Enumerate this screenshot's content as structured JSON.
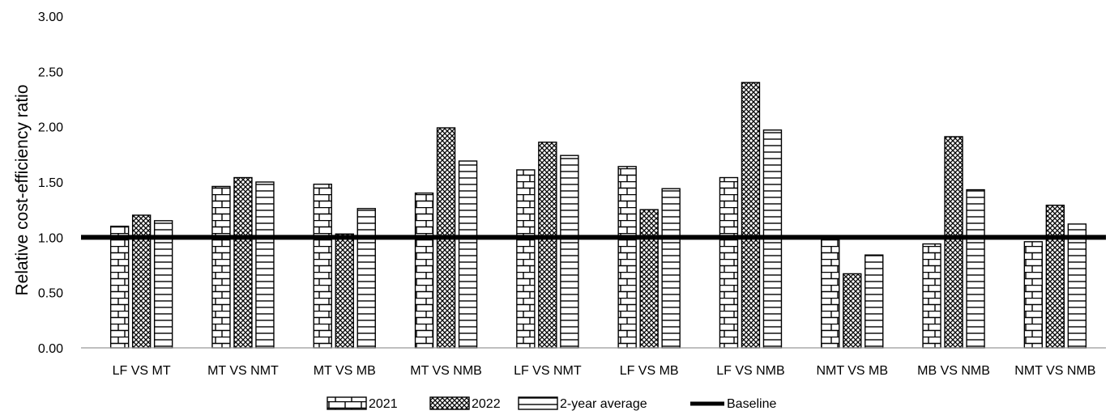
{
  "chart_data": {
    "type": "bar",
    "title": "",
    "xlabel": "",
    "ylabel": "Relative cost-efficiency ratio",
    "ylim": [
      0,
      3.0
    ],
    "yticks": [
      "0.00",
      "0.50",
      "1.00",
      "1.50",
      "2.00",
      "2.50",
      "3.00"
    ],
    "grid": false,
    "legend_position": "bottom",
    "categories": [
      "LF VS MT",
      "MT VS NMT",
      "MT VS MB",
      "MT VS NMB",
      "LF VS NMT",
      "LF VS MB",
      "LF VS NMB",
      "NMT VS MB",
      "MB VS NMB",
      "NMT VS NMB"
    ],
    "series": [
      {
        "name": "2021",
        "pattern": "brick",
        "values": [
          1.1,
          1.46,
          1.48,
          1.4,
          1.61,
          1.64,
          1.54,
          1.0,
          0.94,
          0.96
        ]
      },
      {
        "name": "2022",
        "pattern": "crosshatch",
        "values": [
          1.2,
          1.54,
          1.03,
          1.99,
          1.86,
          1.25,
          2.4,
          0.67,
          1.91,
          1.29
        ]
      },
      {
        "name": "2-year average",
        "pattern": "horizontal-lines",
        "values": [
          1.15,
          1.5,
          1.26,
          1.69,
          1.74,
          1.44,
          1.97,
          0.84,
          1.43,
          1.12
        ]
      }
    ],
    "baseline": {
      "name": "Baseline",
      "value": 1.0,
      "color": "#000000"
    }
  }
}
